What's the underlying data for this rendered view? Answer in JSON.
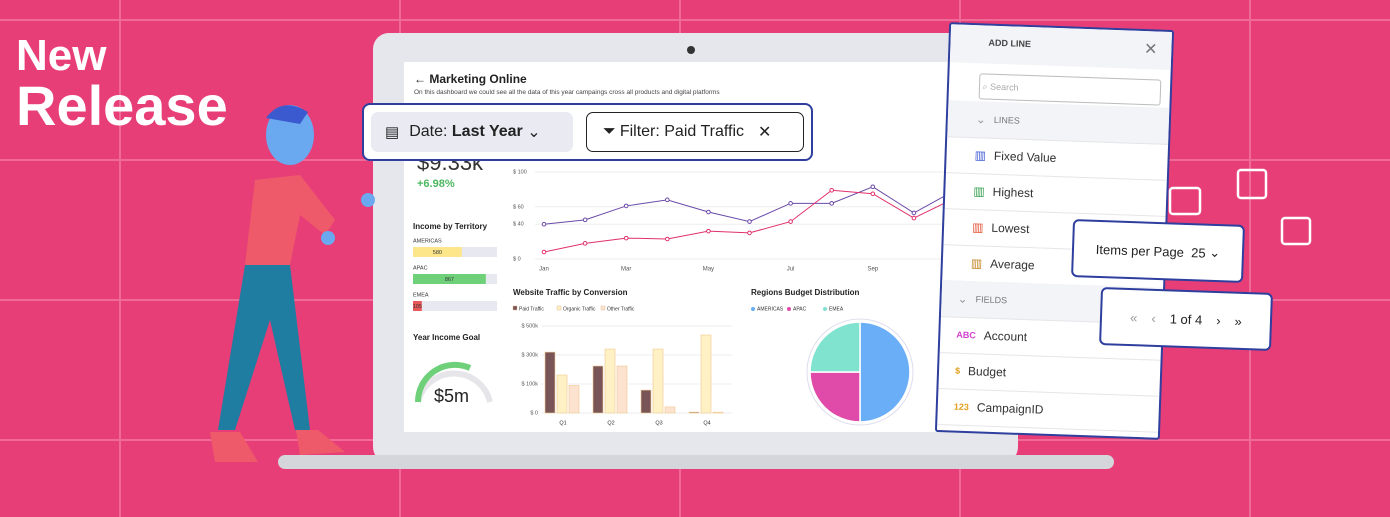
{
  "banner": {
    "line1": "New",
    "line2": "Release"
  },
  "dashboard": {
    "title": "Marketing Online",
    "subtitle": "On this dashboard we could see all the data of this year campaings cross all products and digital platforms",
    "kpi": "$9.33k",
    "kpi_change": "+6.98%"
  },
  "toolbar": {
    "date_label": "Date:",
    "date_value": "Last Year",
    "filter": "Filter: Paid Traffic"
  },
  "income_by_territory": {
    "title": "Income by Territory",
    "xlim": [
      0,
      1000
    ],
    "items": [
      {
        "name": "AMERICAS",
        "value": 580,
        "color": "#fde68a"
      },
      {
        "name": "APAC",
        "value": 867,
        "color": "#6fd07a"
      },
      {
        "name": "EMEA",
        "value": 105,
        "color": "#e85a5a"
      }
    ]
  },
  "year_income_goal": {
    "title": "Year Income Goal",
    "value": "$5m"
  },
  "line_chart": {
    "type": "line",
    "ylim": [
      0,
      100
    ],
    "yticks": [
      {
        "value": 100,
        "label": "$ 100"
      },
      {
        "value": 60,
        "label": "$ 60"
      },
      {
        "value": 40,
        "label": "$ 40"
      },
      {
        "value": 0,
        "label": "$ 0"
      }
    ],
    "x_labels": [
      "Jan",
      "Mar",
      "May",
      "Jul",
      "Sep"
    ],
    "series": [
      {
        "color": "#6a4aa8",
        "values": [
          40,
          45,
          61,
          68,
          54,
          43,
          64,
          64,
          83,
          53,
          79
        ]
      },
      {
        "color": "#e0306a",
        "values": [
          8,
          18,
          24,
          23,
          32,
          30,
          43,
          79,
          75,
          47,
          70
        ]
      }
    ]
  },
  "bar_chart": {
    "type": "bar",
    "title": "Website Traffic by Conversion",
    "categories": [
      "Q1",
      "Q2",
      "Q3",
      "Q4"
    ],
    "yticks": [
      {
        "value": 500,
        "label": "$ 500k"
      },
      {
        "value": 300,
        "label": "$ 300k"
      },
      {
        "value": 100,
        "label": "$ 100k"
      },
      {
        "value": 0,
        "label": "$ 0"
      }
    ],
    "series": [
      {
        "name": "Paid Traffic",
        "color": "#7a5558",
        "values": [
          320,
          224,
          79,
          3
        ]
      },
      {
        "name": "Organic Traffic",
        "color": "#fff1c4",
        "values": [
          162,
          341,
          341,
          438
        ]
      },
      {
        "name": "Other Traffic",
        "color": "#fde3cf",
        "values": [
          95,
          224,
          21,
          3
        ]
      }
    ]
  },
  "pie_chart": {
    "type": "pie",
    "title": "Regions Budget Distribution",
    "categories": [
      "AMERICAS",
      "APAC",
      "EMEA"
    ],
    "values": [
      50,
      25,
      25
    ],
    "colors": [
      "#6aaef8",
      "#e04aa8",
      "#7fe3d0"
    ]
  },
  "add_line_panel": {
    "title": "ADD LINE",
    "search": "Search",
    "lines_header": "LINES",
    "lines": [
      "Fixed Value",
      "Highest",
      "Lowest",
      "Average"
    ],
    "fields_header": "FIELDS",
    "fields": [
      {
        "icon": "ABC",
        "name": "Account"
      },
      {
        "icon": "$",
        "name": "Budget"
      },
      {
        "icon": "123",
        "name": "CampaignID"
      }
    ]
  },
  "items_per_page": {
    "label": "Items per Page",
    "value": "25"
  },
  "pager": {
    "text": "1 of 4"
  }
}
